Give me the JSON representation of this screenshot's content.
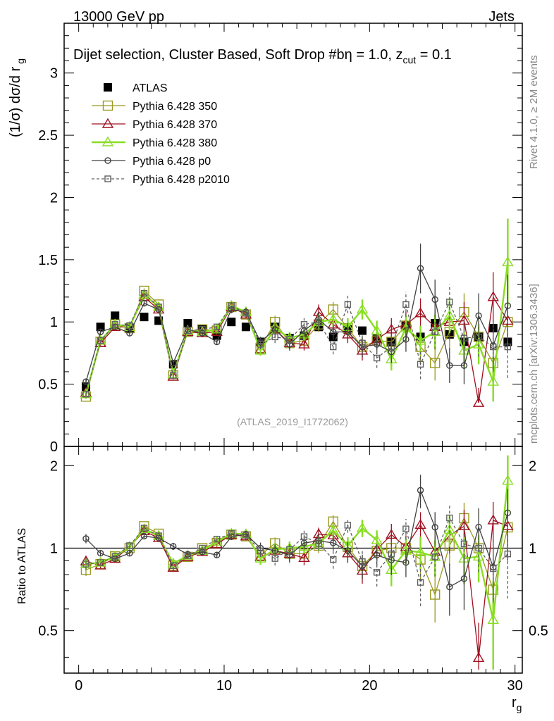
{
  "header": {
    "left": "13000 GeV pp",
    "right": "Jets"
  },
  "side_labels": {
    "top": "Rivet 4.1.0, ≥ 2M events",
    "bottom": "mcplots.cern.ch [arXiv:1306.3436]"
  },
  "chart_data": {
    "type": "line",
    "title_parts": {
      "main": "Dijet selection, Cluster Based, Soft Drop #b",
      "beta": "η = 1.0, z",
      "sub": "cut",
      "tail": " = 0.1"
    },
    "watermark": "(ATLAS_2019_I1772062)",
    "ylabel_main": "(1/σ) dσ/d r",
    "ylabel_main_sub": "g",
    "ylabel_ratio": "Ratio to ATLAS",
    "xlabel": "r",
    "xlabel_sub": "g",
    "xlim": [
      -1,
      30.5
    ],
    "ylim_main": [
      0,
      3.4
    ],
    "ylim_ratio": [
      0.35,
      2.35
    ],
    "xticks": [
      "0",
      "10",
      "20",
      "30"
    ],
    "yticks_main": [
      "0",
      "0.5",
      "1",
      "1.5",
      "2",
      "2.5",
      "3"
    ],
    "yticks_ratio": [
      "0.5",
      "1",
      "2"
    ],
    "yticks_ratio_right": [
      "0.5",
      "1",
      "2"
    ],
    "x": [
      0.5,
      1.5,
      2.5,
      3.5,
      4.5,
      5.5,
      6.5,
      7.5,
      8.5,
      9.5,
      10.5,
      11.5,
      12.5,
      13.5,
      14.5,
      15.5,
      16.5,
      17.5,
      18.5,
      19.5,
      20.5,
      21.5,
      22.5,
      23.5,
      24.5,
      25.5,
      26.5,
      27.5,
      28.5,
      29.5
    ],
    "series": [
      {
        "name": "ATLAS",
        "style": "data",
        "color": "#000000",
        "values": [
          0.48,
          0.96,
          1.05,
          0.95,
          1.04,
          1.01,
          0.66,
          0.99,
          0.94,
          0.89,
          1.0,
          0.96,
          0.84,
          0.96,
          0.87,
          0.89,
          0.96,
          0.88,
          0.94,
          0.93,
          0.87,
          0.84,
          0.97,
          0.88,
          0.99,
          0.9,
          0.84,
          0.88,
          0.95,
          0.84
        ]
      },
      {
        "name": "Pythia 6.428 350",
        "style": "mc",
        "marker": "square",
        "color": "#9a9a22",
        "dashed": false,
        "values": [
          0.4,
          0.84,
          0.98,
          0.95,
          1.25,
          1.14,
          0.57,
          0.92,
          0.94,
          0.93,
          1.12,
          1.06,
          0.79,
          1.0,
          0.83,
          0.85,
          0.98,
          1.1,
          0.95,
          0.8,
          0.85,
          0.84,
          0.97,
          0.8,
          0.67,
          0.92,
          1.08,
          0.88,
          0.67,
          1.0
        ],
        "errors": [
          0.02,
          0.02,
          0.02,
          0.02,
          0.02,
          0.02,
          0.02,
          0.02,
          0.02,
          0.02,
          0.03,
          0.03,
          0.04,
          0.05,
          0.05,
          0.05,
          0.06,
          0.06,
          0.07,
          0.08,
          0.08,
          0.09,
          0.1,
          0.12,
          0.14,
          0.14,
          0.15,
          0.16,
          0.2,
          0.25
        ]
      },
      {
        "name": "Pythia 6.428 370",
        "style": "mc",
        "marker": "triangle",
        "color": "#a01020",
        "dashed": false,
        "values": [
          0.43,
          0.83,
          0.96,
          0.96,
          1.2,
          1.1,
          0.56,
          0.92,
          0.91,
          0.92,
          1.12,
          1.06,
          0.78,
          0.94,
          0.83,
          0.82,
          1.08,
          0.98,
          0.9,
          0.77,
          0.86,
          0.94,
          0.98,
          1.07,
          0.96,
          1.0,
          1.01,
          0.35,
          1.2,
          1.01
        ],
        "errors": [
          0.02,
          0.02,
          0.02,
          0.02,
          0.02,
          0.02,
          0.02,
          0.02,
          0.02,
          0.02,
          0.03,
          0.03,
          0.04,
          0.05,
          0.05,
          0.05,
          0.06,
          0.06,
          0.07,
          0.08,
          0.08,
          0.09,
          0.1,
          0.12,
          0.14,
          0.14,
          0.15,
          0.12,
          0.2,
          0.25
        ]
      },
      {
        "name": "Pythia 6.428 380",
        "style": "mc",
        "marker": "triangle",
        "color": "#88dd22",
        "dashed": false,
        "bold": true,
        "values": [
          0.42,
          0.85,
          0.98,
          0.96,
          1.22,
          1.12,
          0.58,
          0.93,
          0.92,
          0.94,
          1.13,
          1.08,
          0.77,
          0.95,
          0.87,
          0.9,
          1.0,
          1.02,
          0.96,
          1.1,
          0.93,
          0.7,
          0.95,
          0.85,
          0.92,
          1.05,
          0.77,
          0.82,
          0.52,
          1.48
        ],
        "errors": [
          0.02,
          0.02,
          0.02,
          0.02,
          0.02,
          0.02,
          0.02,
          0.02,
          0.02,
          0.02,
          0.03,
          0.03,
          0.04,
          0.05,
          0.05,
          0.05,
          0.06,
          0.06,
          0.07,
          0.08,
          0.08,
          0.09,
          0.1,
          0.12,
          0.14,
          0.14,
          0.15,
          0.16,
          0.2,
          0.35
        ]
      },
      {
        "name": "Pythia 6.428 p0",
        "style": "mc",
        "marker": "circle",
        "color": "#404040",
        "dashed": false,
        "values": [
          0.52,
          0.92,
          0.96,
          0.91,
          1.15,
          1.1,
          0.67,
          0.94,
          0.91,
          0.84,
          1.1,
          1.08,
          0.84,
          0.94,
          0.82,
          0.93,
          1.02,
          0.92,
          0.92,
          0.8,
          0.82,
          0.76,
          0.86,
          1.43,
          1.18,
          0.65,
          0.65,
          1.05,
          0.81,
          1.13
        ],
        "errors": [
          0.02,
          0.02,
          0.02,
          0.02,
          0.02,
          0.02,
          0.02,
          0.02,
          0.02,
          0.02,
          0.03,
          0.03,
          0.04,
          0.05,
          0.05,
          0.05,
          0.06,
          0.06,
          0.07,
          0.08,
          0.08,
          0.09,
          0.1,
          0.2,
          0.16,
          0.14,
          0.15,
          0.18,
          0.2,
          0.25
        ]
      },
      {
        "name": "Pythia 6.428 p2010",
        "style": "mc",
        "marker": "opensquare",
        "color": "#606060",
        "dashed": true,
        "values": [
          0.42,
          0.85,
          0.98,
          0.97,
          1.23,
          1.12,
          0.57,
          0.93,
          0.94,
          0.96,
          1.13,
          1.07,
          0.82,
          0.88,
          0.86,
          0.98,
          1.0,
          0.8,
          1.14,
          0.83,
          0.71,
          0.8,
          1.14,
          0.66,
          0.92,
          1.16,
          0.87,
          0.88,
          0.8,
          0.8
        ],
        "errors": [
          0.02,
          0.02,
          0.02,
          0.02,
          0.02,
          0.02,
          0.02,
          0.02,
          0.02,
          0.02,
          0.03,
          0.03,
          0.04,
          0.05,
          0.05,
          0.05,
          0.06,
          0.06,
          0.07,
          0.08,
          0.08,
          0.09,
          0.1,
          0.12,
          0.14,
          0.14,
          0.15,
          0.16,
          0.2,
          0.25
        ]
      }
    ]
  }
}
